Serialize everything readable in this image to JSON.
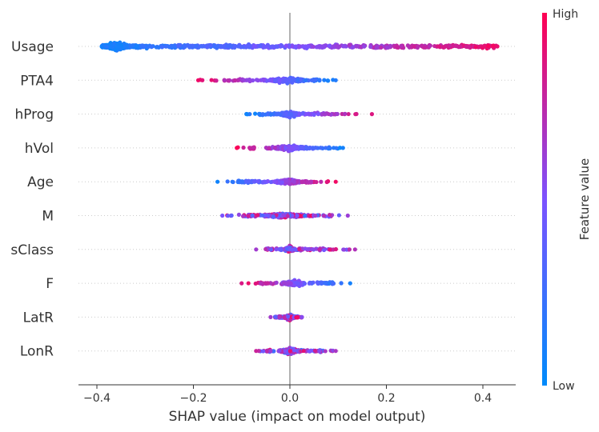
{
  "chart_data": {
    "type": "scatter",
    "subtype": "shap-beeswarm",
    "title": "",
    "xlabel": "SHAP value (impact on model output)",
    "ylabel": "",
    "xlim": [
      -0.44,
      0.47
    ],
    "x_ticks": [
      -0.4,
      -0.2,
      0.0,
      0.2,
      0.4
    ],
    "x_tick_labels": [
      "−0.4",
      "−0.2",
      "0.0",
      "0.2",
      "0.4"
    ],
    "grid": false,
    "colorbar": {
      "label": "Feature value",
      "high_label": "High",
      "low_label": "Low",
      "low_color": "#008bfb",
      "mid_color": "#7c52ff",
      "high_color": "#ff0052"
    },
    "features": [
      {
        "name": "Usage",
        "min": -0.39,
        "max": 0.43,
        "dense_low": -0.39,
        "dense_high": -0.33,
        "color_trend": "increasing"
      },
      {
        "name": "PTA4",
        "min": -0.19,
        "max": 0.095,
        "dense_low": -0.04,
        "dense_high": 0.03,
        "color_trend": "decreasing"
      },
      {
        "name": "hProg",
        "min": -0.09,
        "max": 0.17,
        "dense_low": -0.02,
        "dense_high": 0.02,
        "color_trend": "increasing"
      },
      {
        "name": "hVol",
        "min": -0.11,
        "max": 0.11,
        "dense_low": -0.03,
        "dense_high": 0.03,
        "color_trend": "decreasing"
      },
      {
        "name": "Age",
        "min": -0.15,
        "max": 0.095,
        "dense_low": -0.03,
        "dense_high": 0.02,
        "color_trend": "increasing"
      },
      {
        "name": "M",
        "min": -0.14,
        "max": 0.12,
        "dense_low": -0.05,
        "dense_high": 0.03,
        "color_trend": "mixed"
      },
      {
        "name": "sClass",
        "min": -0.07,
        "max": 0.135,
        "dense_low": -0.01,
        "dense_high": 0.01,
        "color_trend": "mixed"
      },
      {
        "name": "F",
        "min": -0.1,
        "max": 0.125,
        "dense_low": -0.01,
        "dense_high": 0.03,
        "color_trend": "decreasing"
      },
      {
        "name": "LatR",
        "min": -0.04,
        "max": 0.025,
        "dense_low": -0.01,
        "dense_high": 0.01,
        "color_trend": "mixed"
      },
      {
        "name": "LonR",
        "min": -0.07,
        "max": 0.095,
        "dense_low": -0.02,
        "dense_high": 0.02,
        "color_trend": "mixed"
      }
    ]
  }
}
